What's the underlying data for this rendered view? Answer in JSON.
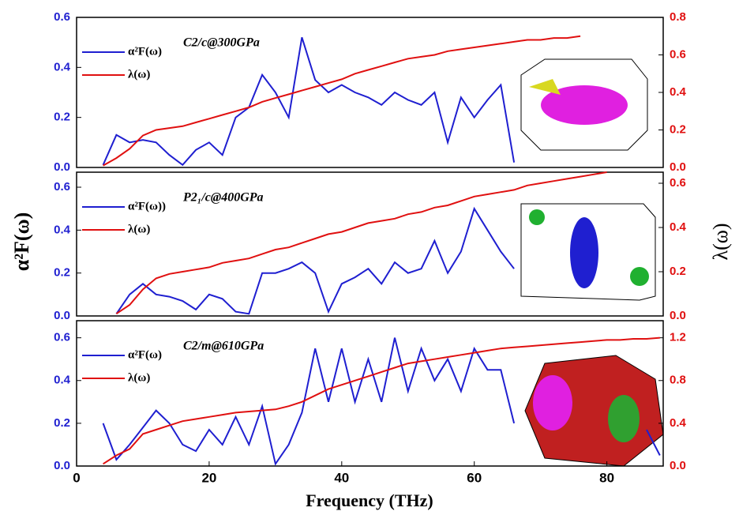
{
  "chart_data": [
    {
      "type": "line",
      "title": "C2/c@300GPa",
      "x": [
        2,
        4,
        6,
        8,
        10,
        12,
        14,
        16,
        18,
        20,
        22,
        24,
        26,
        28,
        30,
        32,
        34,
        36,
        38,
        40,
        42,
        44,
        46,
        48,
        50,
        52,
        54,
        56,
        58,
        60,
        62,
        64,
        66,
        68,
        70,
        72,
        74,
        76,
        78,
        80,
        82,
        84,
        86,
        88
      ],
      "xlim": [
        0,
        88.5
      ],
      "ylim": [
        0,
        0.6
      ],
      "yticks": [
        {
          "value": 0,
          "label": "0.0"
        },
        0.2,
        0.4,
        0.6
      ],
      "y2lim": [
        0,
        0.8
      ],
      "y2ticks": [
        {
          "value": 0,
          "label": "0.0"
        },
        0.2,
        0.4,
        0.6,
        0.8
      ],
      "series": [
        {
          "name": "α²F(ω)",
          "color": "#1f1fd0",
          "values": [
            null,
            0.01,
            0.13,
            0.1,
            0.11,
            0.1,
            0.05,
            0.01,
            0.07,
            0.1,
            0.05,
            0.2,
            0.24,
            0.37,
            0.3,
            0.2,
            0.52,
            0.35,
            0.3,
            0.33,
            0.3,
            0.28,
            0.25,
            0.3,
            0.27,
            0.25,
            0.3,
            0.1,
            0.28,
            0.2,
            0.27,
            0.33,
            0.02,
            null,
            null,
            null,
            null,
            null,
            null,
            null,
            null,
            null,
            null,
            null
          ]
        },
        {
          "name": "λ(ω)",
          "color": "#e01010",
          "axis": "y2",
          "values": [
            null,
            0.01,
            0.05,
            0.1,
            0.17,
            0.2,
            0.21,
            0.22,
            0.24,
            0.26,
            0.28,
            0.3,
            0.32,
            0.35,
            0.37,
            0.39,
            0.41,
            0.43,
            0.45,
            0.47,
            0.5,
            0.52,
            0.54,
            0.56,
            0.58,
            0.59,
            0.6,
            0.62,
            0.63,
            0.64,
            0.65,
            0.66,
            0.67,
            0.68,
            0.68,
            0.69,
            0.69,
            0.7,
            null,
            null,
            null,
            null,
            null,
            null
          ]
        }
      ]
    },
    {
      "type": "line",
      "title": "P2₁/c@400GPa",
      "ylabel": "α²F(ω)",
      "y2label": "λ(ω)",
      "x": [
        2,
        4,
        6,
        8,
        10,
        12,
        14,
        16,
        18,
        20,
        22,
        24,
        26,
        28,
        30,
        32,
        34,
        36,
        38,
        40,
        42,
        44,
        46,
        48,
        50,
        52,
        54,
        56,
        58,
        60,
        62,
        64,
        66,
        68,
        70,
        72,
        74,
        76,
        78,
        80,
        82,
        84,
        86,
        88
      ],
      "xlim": [
        0,
        88.5
      ],
      "ylim": [
        0,
        0.67
      ],
      "yticks": [
        {
          "value": 0,
          "label": "0.0"
        },
        0.2,
        0.4,
        0.6
      ],
      "y2lim": [
        0,
        0.65
      ],
      "y2ticks": [
        {
          "value": 0,
          "label": "0.0"
        },
        0.2,
        0.4,
        0.6
      ],
      "series": [
        {
          "name": "α²F(ω))",
          "color": "#1f1fd0",
          "values": [
            null,
            null,
            0.01,
            0.1,
            0.15,
            0.1,
            0.09,
            0.07,
            0.03,
            0.1,
            0.08,
            0.02,
            0.01,
            0.2,
            0.2,
            0.22,
            0.25,
            0.2,
            0.02,
            0.15,
            0.18,
            0.22,
            0.15,
            0.25,
            0.2,
            0.22,
            0.35,
            0.2,
            0.3,
            0.5,
            0.4,
            0.3,
            0.22,
            null,
            null,
            null,
            null,
            null,
            null,
            null,
            null,
            null,
            null,
            null
          ]
        },
        {
          "name": "λ(ω)",
          "color": "#e01010",
          "axis": "y2",
          "values": [
            null,
            null,
            0.01,
            0.05,
            0.12,
            0.17,
            0.19,
            0.2,
            0.21,
            0.22,
            0.24,
            0.25,
            0.26,
            0.28,
            0.3,
            0.31,
            0.33,
            0.35,
            0.37,
            0.38,
            0.4,
            0.42,
            0.43,
            0.44,
            0.46,
            0.47,
            0.49,
            0.5,
            0.52,
            0.54,
            0.55,
            0.56,
            0.57,
            0.59,
            0.6,
            0.61,
            0.62,
            0.63,
            0.64,
            0.65,
            null,
            null,
            null,
            null
          ]
        }
      ]
    },
    {
      "type": "line",
      "title": "C2/m@610GPa",
      "xlabel": "Frequency (THz)",
      "x": [
        2,
        4,
        6,
        8,
        10,
        12,
        14,
        16,
        18,
        20,
        22,
        24,
        26,
        28,
        30,
        32,
        34,
        36,
        38,
        40,
        42,
        44,
        46,
        48,
        50,
        52,
        54,
        56,
        58,
        60,
        62,
        64,
        66,
        68,
        70,
        72,
        74,
        76,
        78,
        80,
        82,
        84,
        86,
        88
      ],
      "xlim": [
        0,
        88.5
      ],
      "xticks": [
        0,
        20,
        40,
        60,
        80
      ],
      "ylim": [
        0,
        0.68
      ],
      "yticks": [
        {
          "value": 0,
          "label": "0.0"
        },
        0.2,
        0.4,
        0.6
      ],
      "y2lim": [
        0,
        1.36
      ],
      "y2ticks": [
        {
          "value": 0,
          "label": "0.0"
        },
        0.4,
        0.8,
        1.2
      ],
      "series": [
        {
          "name": "α²F(ω)",
          "color": "#1f1fd0",
          "values": [
            null,
            0.2,
            0.03,
            0.1,
            0.18,
            0.26,
            0.2,
            0.1,
            0.07,
            0.17,
            0.1,
            0.23,
            0.1,
            0.28,
            0.01,
            0.1,
            0.25,
            0.55,
            0.3,
            0.55,
            0.3,
            0.5,
            0.3,
            0.6,
            0.35,
            0.55,
            0.4,
            0.5,
            0.35,
            0.55,
            0.45,
            0.45,
            0.2,
            null,
            null,
            null,
            null,
            null,
            null,
            null,
            null,
            null,
            0.17,
            0.05
          ]
        },
        {
          "name": "λ(ω)",
          "color": "#e01010",
          "axis": "y2",
          "values": [
            null,
            0.02,
            0.1,
            0.16,
            0.3,
            0.34,
            0.38,
            0.42,
            0.44,
            0.46,
            0.48,
            0.5,
            0.51,
            0.52,
            0.53,
            0.56,
            0.6,
            0.66,
            0.72,
            0.76,
            0.8,
            0.84,
            0.88,
            0.92,
            0.96,
            0.98,
            1.0,
            1.02,
            1.04,
            1.06,
            1.08,
            1.1,
            1.11,
            1.12,
            1.13,
            1.14,
            1.15,
            1.16,
            1.17,
            1.18,
            1.18,
            1.19,
            1.19,
            1.2
          ]
        }
      ]
    }
  ]
}
